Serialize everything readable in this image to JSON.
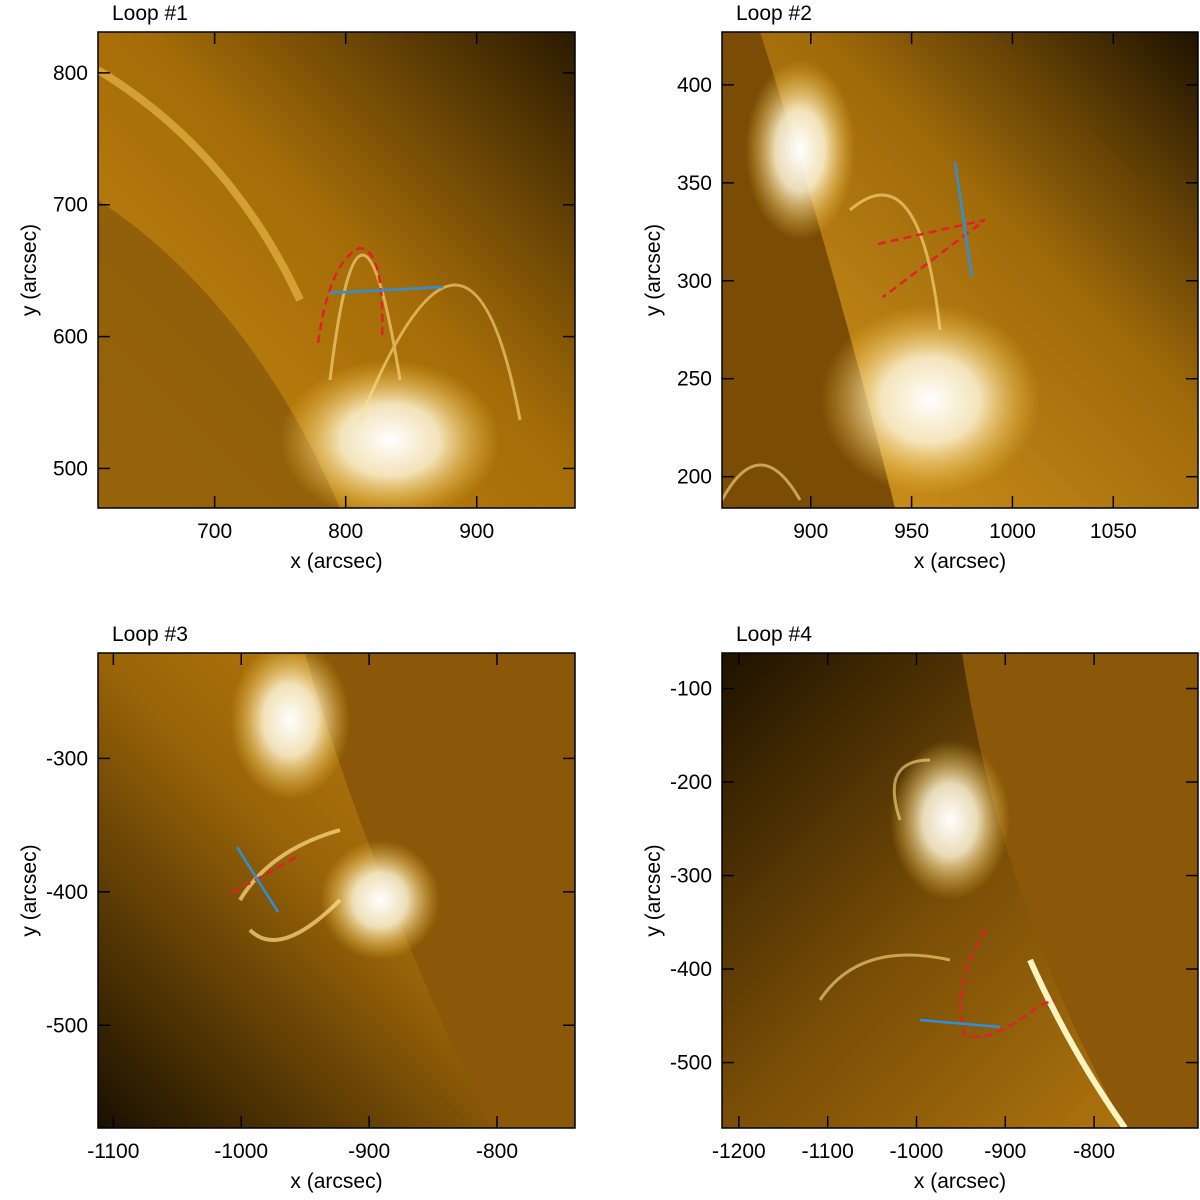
{
  "chart_data": [
    {
      "type": "image",
      "title": "Loop #1",
      "xlabel": "x (arcsec)",
      "ylabel": "y (arcsec)",
      "xlim": [
        611,
        975
      ],
      "ylim": [
        470,
        831
      ],
      "xticks": [
        700,
        800,
        900
      ],
      "yticks": [
        500,
        600,
        700,
        800
      ]
    },
    {
      "type": "image",
      "title": "Loop #2",
      "xlabel": "x (arcsec)",
      "ylabel": "y (arcsec)",
      "xlim": [
        856,
        1092
      ],
      "ylim": [
        184,
        427
      ],
      "xticks": [
        900,
        950,
        1000,
        1050
      ],
      "yticks": [
        200,
        250,
        300,
        350,
        400
      ]
    },
    {
      "type": "image",
      "title": "Loop #3",
      "xlabel": "x (arcsec)",
      "ylabel": "y (arcsec)",
      "xlim": [
        -1112,
        -739
      ],
      "ylim": [
        -577,
        -221
      ],
      "xticks": [
        -1100,
        -1000,
        -900,
        -800
      ],
      "yticks": [
        -500,
        -400,
        -300
      ]
    },
    {
      "type": "image",
      "title": "Loop #4",
      "xlabel": "x (arcsec)",
      "ylabel": "y (arcsec)",
      "xlim": [
        -1219,
        -683
      ],
      "ylim": [
        -570,
        -62
      ],
      "xticks": [
        -1200,
        -1100,
        -1000,
        -900,
        -800
      ],
      "yticks": [
        -500,
        -400,
        -300,
        -200,
        -100
      ]
    }
  ]
}
